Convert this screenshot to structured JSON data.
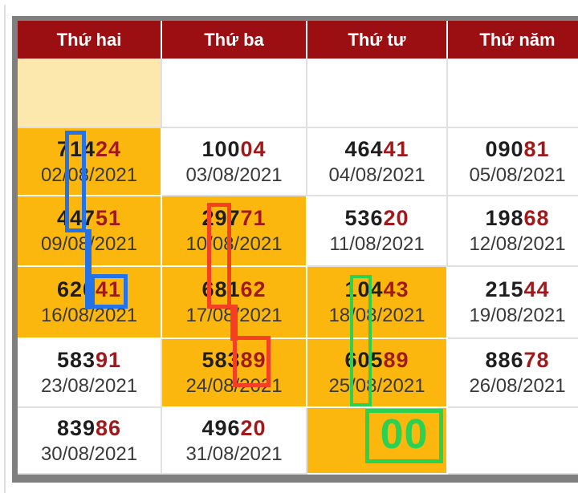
{
  "table": {
    "header": {
      "bg": "#9b0e11",
      "text_color": "#ffffff",
      "days": [
        "Thứ hai",
        "Thứ ba",
        "Thứ tư",
        "Thứ năm"
      ]
    },
    "colors": {
      "highlight_orange": "#fcb70f",
      "cream": "#fce8ad",
      "number_black": "#1e1e1e",
      "number_red": "#a1191b",
      "date_text": "#3a3a3a",
      "outer_border_gray": "#7f7f7f"
    },
    "rows": [
      {
        "cells": [
          {
            "type": "cream"
          },
          {
            "type": "blank"
          },
          {
            "type": "blank"
          },
          {
            "type": "blank"
          }
        ]
      },
      {
        "cells": [
          {
            "num_black": "714",
            "num_red": "24",
            "date": "02/08/2021",
            "highlight": true
          },
          {
            "num_black": "100",
            "num_red": "04",
            "date": "03/08/2021",
            "highlight": false
          },
          {
            "num_black": "464",
            "num_red": "41",
            "date": "04/08/2021",
            "highlight": false
          },
          {
            "num_black": "090",
            "num_red": "81",
            "date": "05/08/2021",
            "highlight": false
          }
        ]
      },
      {
        "cells": [
          {
            "num_black": "447",
            "num_red": "51",
            "date": "09/08/2021",
            "highlight": true
          },
          {
            "num_black": "297",
            "num_red": "71",
            "date": "10/08/2021",
            "highlight": true
          },
          {
            "num_black": "536",
            "num_red": "20",
            "date": "11/08/2021",
            "highlight": false
          },
          {
            "num_black": "198",
            "num_red": "68",
            "date": "12/08/2021",
            "highlight": false
          }
        ]
      },
      {
        "cells": [
          {
            "num_black": "620",
            "num_red": "41",
            "date": "16/08/2021",
            "highlight": true
          },
          {
            "num_black": "681",
            "num_red": "62",
            "date": "17/08/2021",
            "highlight": true
          },
          {
            "num_black": "104",
            "num_red": "43",
            "date": "18/08/2021",
            "highlight": true
          },
          {
            "num_black": "215",
            "num_red": "44",
            "date": "19/08/2021",
            "highlight": false
          }
        ]
      },
      {
        "cells": [
          {
            "num_black": "583",
            "num_red": "91",
            "date": "23/08/2021",
            "highlight": false
          },
          {
            "num_black": "583",
            "num_red": "89",
            "date": "24/08/2021",
            "highlight": true
          },
          {
            "num_black": "605",
            "num_red": "89",
            "date": "25/08/2021",
            "highlight": true
          },
          {
            "num_black": "886",
            "num_red": "78",
            "date": "26/08/2021",
            "highlight": false
          }
        ]
      },
      {
        "cells": [
          {
            "num_black": "839",
            "num_red": "86",
            "date": "30/08/2021",
            "highlight": false
          },
          {
            "num_black": "496",
            "num_red": "20",
            "date": "31/08/2021",
            "highlight": false
          },
          {
            "type": "zero_cell",
            "highlight": true
          },
          {
            "type": "blank"
          }
        ]
      }
    ]
  },
  "annotations": {
    "blue": {
      "color": "#2472e8"
    },
    "red": {
      "color": "#f43f22"
    },
    "green": {
      "color": "#2bd150",
      "zero_label": "00"
    }
  }
}
